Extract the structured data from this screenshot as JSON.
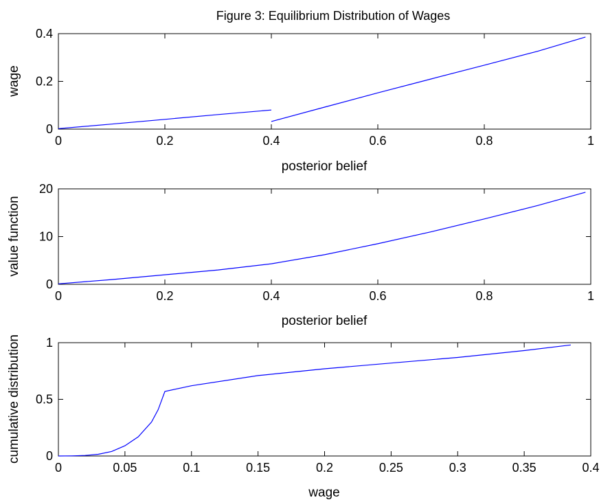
{
  "figure_title": "Figure 3: Equilibrium Distribution of Wages",
  "chart_data": [
    {
      "type": "line",
      "xlabel": "posterior belief",
      "ylabel": "wage",
      "xlim": [
        0,
        1
      ],
      "ylim": [
        0,
        0.4
      ],
      "xticks": [
        "0",
        "0.2",
        "0.4",
        "0.6",
        "0.8",
        "1"
      ],
      "yticks": [
        "0",
        "0.2",
        "0.4"
      ],
      "grid": false,
      "series_color": "#0000ff",
      "series": [
        {
          "x": [
            0,
            0.1,
            0.2,
            0.3,
            0.4
          ],
          "y": [
            0.002,
            0.021,
            0.041,
            0.061,
            0.08
          ]
        },
        {
          "x": [
            0.4,
            0.5,
            0.6,
            0.7,
            0.8,
            0.9,
            0.99
          ],
          "y": [
            0.032,
            0.092,
            0.152,
            0.21,
            0.268,
            0.326,
            0.386
          ]
        }
      ]
    },
    {
      "type": "line",
      "xlabel": "posterior belief",
      "ylabel": "value function",
      "xlim": [
        0,
        1
      ],
      "ylim": [
        0,
        20
      ],
      "xticks": [
        "0",
        "0.2",
        "0.4",
        "0.6",
        "0.8",
        "1"
      ],
      "yticks": [
        "0",
        "10",
        "20"
      ],
      "grid": false,
      "series_color": "#0000ff",
      "series": [
        {
          "x": [
            0,
            0.1,
            0.2,
            0.3,
            0.4,
            0.5,
            0.6,
            0.7,
            0.8,
            0.9,
            0.99
          ],
          "y": [
            0.1,
            1.0,
            2.0,
            3.0,
            4.3,
            6.2,
            8.5,
            11.0,
            13.7,
            16.5,
            19.3
          ]
        }
      ]
    },
    {
      "type": "line",
      "xlabel": "wage",
      "ylabel": "cumulative distribution",
      "xlim": [
        0,
        0.4
      ],
      "ylim": [
        0,
        1
      ],
      "xticks": [
        "0",
        "0.05",
        "0.1",
        "0.15",
        "0.2",
        "0.25",
        "0.3",
        "0.35",
        "0.4"
      ],
      "yticks": [
        "0",
        "0.5",
        "1"
      ],
      "grid": false,
      "series_color": "#0000ff",
      "series": [
        {
          "x": [
            0,
            0.01,
            0.02,
            0.03,
            0.04,
            0.05,
            0.06,
            0.07,
            0.075,
            0.08,
            0.1,
            0.15,
            0.2,
            0.25,
            0.3,
            0.35,
            0.385
          ],
          "y": [
            0,
            0.001,
            0.005,
            0.015,
            0.04,
            0.09,
            0.17,
            0.3,
            0.41,
            0.57,
            0.62,
            0.71,
            0.77,
            0.82,
            0.87,
            0.93,
            0.98
          ]
        }
      ]
    }
  ]
}
